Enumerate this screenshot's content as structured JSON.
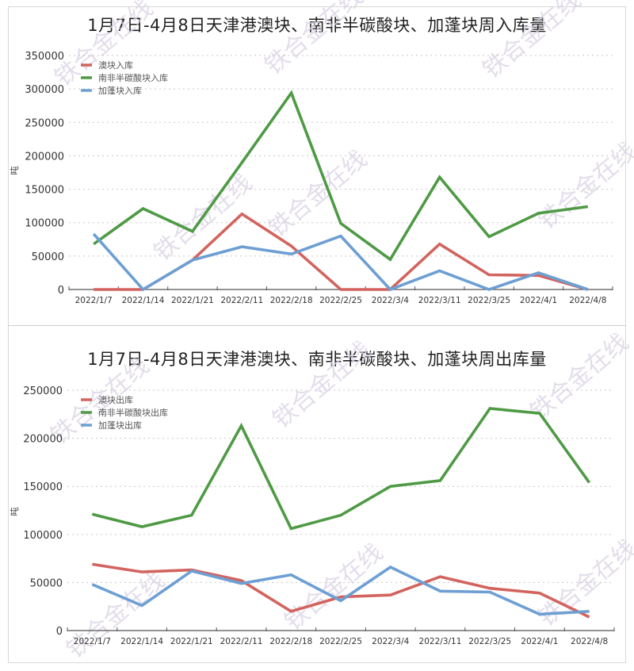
{
  "colors": {
    "red": "#d2645f",
    "green": "#4f9a45",
    "blue": "#6d9fd3",
    "grid": "#c8c8c8",
    "axis": "#555555"
  },
  "watermark": "铁合金在线",
  "chart_data": [
    {
      "type": "line",
      "title": "1月7日-4月8日天津港澳块、南非半碳酸块、加蓬块周入库量",
      "xlabel": "",
      "ylabel": "吨",
      "ylim": [
        0,
        350000
      ],
      "yticks": [
        0,
        50000,
        100000,
        150000,
        200000,
        250000,
        300000,
        350000
      ],
      "grid": true,
      "legend_position": "upper-left",
      "categories": [
        "2022/1/7",
        "2022/1/14",
        "2022/1/21",
        "2022/2/11",
        "2022/2/18",
        "2022/2/25",
        "2022/3/4",
        "2022/3/11",
        "2022/3/25",
        "2022/4/1",
        "2022/4/8"
      ],
      "series": [
        {
          "name": "澳块入库",
          "color": "#d2645f",
          "values": [
            0,
            0,
            44000,
            113000,
            65000,
            0,
            0,
            68000,
            22000,
            21000,
            0
          ]
        },
        {
          "name": "南非半碳酸块入库",
          "color": "#4f9a45",
          "values": [
            68000,
            121000,
            87000,
            190000,
            294000,
            99000,
            45000,
            168000,
            79000,
            114000,
            124000
          ]
        },
        {
          "name": "加蓬块入库",
          "color": "#6d9fd3",
          "values": [
            83000,
            0,
            44000,
            64000,
            53000,
            80000,
            0,
            28000,
            0,
            25000,
            0
          ]
        }
      ]
    },
    {
      "type": "line",
      "title": "1月7日-4月8日天津港澳块、南非半碳酸块、加蓬块周出库量",
      "xlabel": "",
      "ylabel": "吨",
      "ylim": [
        0,
        250000
      ],
      "yticks": [
        0,
        50000,
        100000,
        150000,
        200000,
        250000
      ],
      "grid": true,
      "legend_position": "upper-left",
      "categories": [
        "2022/1/7",
        "2022/1/14",
        "2022/1/21",
        "2022/2/11",
        "2022/2/18",
        "2022/2/25",
        "2022/3/4",
        "2022/3/11",
        "2022/3/25",
        "2022/4/1",
        "2022/4/8"
      ],
      "series": [
        {
          "name": "澳块出库",
          "color": "#d2645f",
          "values": [
            69000,
            61000,
            63000,
            52000,
            20000,
            35000,
            37000,
            56000,
            44000,
            39000,
            14000
          ]
        },
        {
          "name": "南非半碳酸块出库",
          "color": "#4f9a45",
          "values": [
            121000,
            108000,
            120000,
            213000,
            106000,
            120000,
            150000,
            156000,
            231000,
            226000,
            154000
          ]
        },
        {
          "name": "加蓬块出库",
          "color": "#6d9fd3",
          "values": [
            48000,
            26000,
            62000,
            49000,
            58000,
            31000,
            66000,
            41000,
            40000,
            17000,
            20000
          ]
        }
      ]
    }
  ]
}
